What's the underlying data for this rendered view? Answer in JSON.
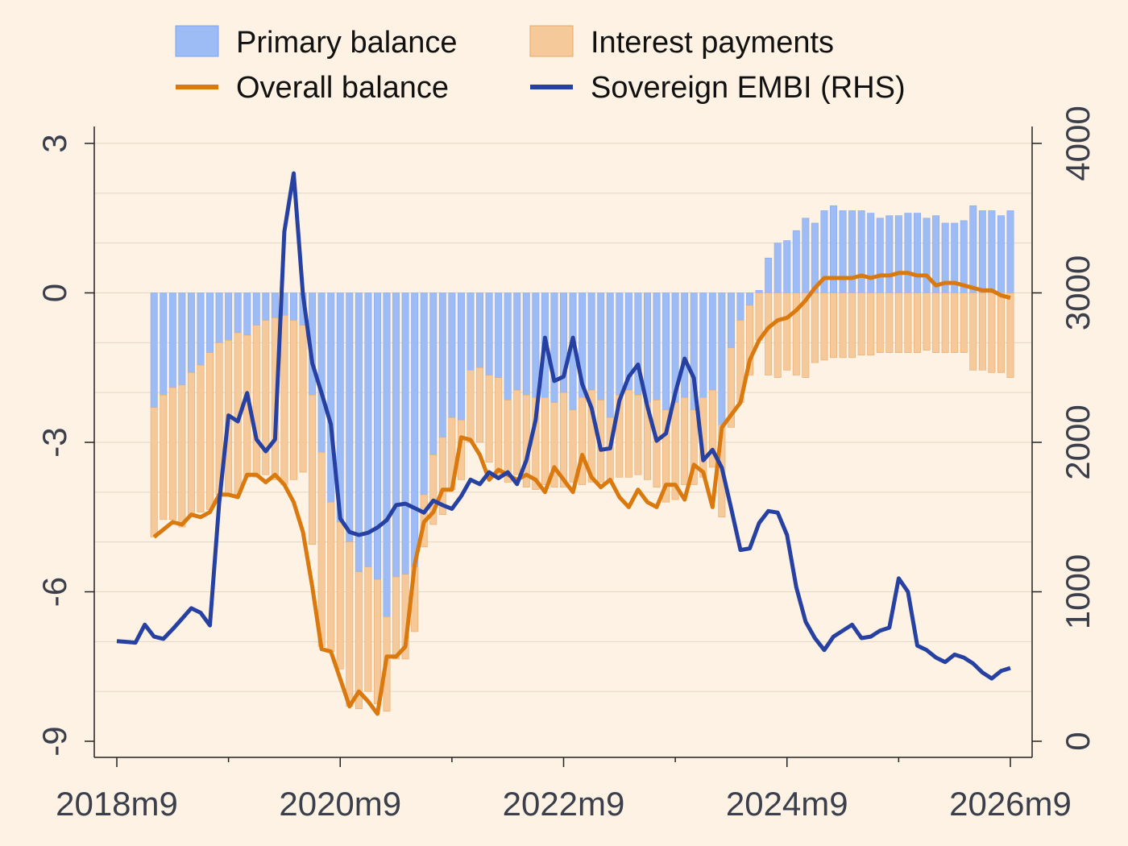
{
  "chart_data": {
    "type": "bar",
    "title": "",
    "xlabel": "",
    "ylabel": "",
    "y2label": "",
    "ylim": [
      -9,
      3
    ],
    "y2lim": [
      0,
      4000
    ],
    "yticks": [
      "3",
      "0",
      "-3",
      "-6",
      "-9"
    ],
    "y2ticks": [
      "4000",
      "3000",
      "2000",
      "1000",
      "0"
    ],
    "xticks": [
      "2018m9",
      "2020m9",
      "2022m9",
      "2024m9",
      "2026m9"
    ],
    "legend_position": "top",
    "grid": true,
    "colors": {
      "primary_balance": "#9dbcf5",
      "interest_payments": "#f5c999",
      "overall_balance": "#d9790e",
      "embi": "#2741a3",
      "background": "#fdf2e3"
    },
    "legend": {
      "primary": "Primary balance",
      "interest": "Interest payments",
      "overall": "Overall balance",
      "embi": "Sovereign EMBI (RHS)"
    },
    "series": [
      {
        "name": "Primary balance",
        "axis": "left",
        "kind": "bar",
        "values": [
          -2.3,
          -2.05,
          -1.9,
          -1.85,
          -1.6,
          -1.45,
          -1.2,
          -1.0,
          -0.95,
          -0.8,
          -0.85,
          -0.65,
          -0.55,
          -0.5,
          -0.45,
          -0.55,
          -0.65,
          -2.05,
          -3.2,
          -4.2,
          -4.6,
          -5.0,
          -5.6,
          -5.5,
          -5.75,
          -6.5,
          -5.7,
          -5.65,
          -5.5,
          -4.05,
          -3.25,
          -2.9,
          -2.5,
          -2.55,
          -1.55,
          -1.5,
          -1.65,
          -1.7,
          -2.15,
          -1.95,
          -2.05,
          -2.1,
          -2.1,
          -2.2,
          -2.0,
          -2.35,
          -2.1,
          -1.95,
          -2.15,
          -2.5,
          -2.05,
          -1.95,
          -2.05,
          -2.2,
          -2.15,
          -2.35,
          -2.2,
          -2.1,
          -2.35,
          -2.1,
          -1.95,
          -2.65,
          -1.1,
          -0.55,
          -0.25,
          0.05,
          0.7,
          1.0,
          1.05,
          1.25,
          1.5,
          1.4,
          1.65,
          1.75,
          1.65,
          1.65,
          1.65,
          1.6,
          1.5,
          1.55,
          1.55,
          1.6,
          1.6,
          1.5,
          1.55,
          1.4,
          1.4,
          1.45,
          1.75,
          1.65,
          1.65,
          1.55,
          1.65
        ]
      },
      {
        "name": "Interest payments",
        "axis": "left",
        "kind": "bar",
        "values": [
          -2.6,
          -2.5,
          -2.65,
          -2.85,
          -2.85,
          -2.95,
          -3.15,
          -3.05,
          -3.1,
          -3.25,
          -2.85,
          -3.05,
          -3.1,
          -3.25,
          -3.4,
          -3.2,
          -2.95,
          -3.0,
          -3.9,
          -3.0,
          -2.95,
          -3.3,
          -2.75,
          -2.5,
          -2.5,
          -1.9,
          -1.65,
          -1.7,
          -1.3,
          -1.05,
          -1.4,
          -1.55,
          -1.45,
          -1.2,
          -1.45,
          -1.5,
          -1.75,
          -1.95,
          -1.65,
          -1.7,
          -1.85,
          -1.85,
          -1.75,
          -1.7,
          -1.9,
          -1.45,
          -1.75,
          -1.85,
          -1.65,
          -1.25,
          -1.65,
          -1.75,
          -1.6,
          -1.55,
          -1.75,
          -1.85,
          -1.95,
          -1.75,
          -1.5,
          -1.6,
          -1.55,
          -1.85,
          -1.6,
          -1.65,
          -1.4,
          -0.95,
          -1.65,
          -1.7,
          -1.55,
          -1.65,
          -1.7,
          -1.4,
          -1.35,
          -1.3,
          -1.3,
          -1.3,
          -1.25,
          -1.25,
          -1.2,
          -1.2,
          -1.2,
          -1.2,
          -1.2,
          -1.15,
          -1.2,
          -1.2,
          -1.2,
          -1.2,
          -1.55,
          -1.55,
          -1.6,
          -1.6,
          -1.7
        ]
      },
      {
        "name": "Overall balance",
        "axis": "left",
        "kind": "line",
        "values": [
          -4.9,
          -4.75,
          -4.6,
          -4.65,
          -4.45,
          -4.5,
          -4.4,
          -4.05,
          -4.05,
          -4.1,
          -3.65,
          -3.65,
          -3.8,
          -3.65,
          -3.85,
          -4.2,
          -4.8,
          -5.9,
          -7.15,
          -7.2,
          -7.75,
          -8.3,
          -8.0,
          -8.2,
          -8.45,
          -7.3,
          -7.3,
          -7.1,
          -5.45,
          -4.6,
          -4.4,
          -3.95,
          -3.95,
          -2.9,
          -2.95,
          -3.25,
          -3.75,
          -3.55,
          -3.65,
          -3.75,
          -3.65,
          -3.75,
          -4.0,
          -3.5,
          -3.75,
          -4.0,
          -3.25,
          -3.7,
          -3.9,
          -3.75,
          -4.1,
          -4.3,
          -3.95,
          -4.2,
          -4.3,
          -3.85,
          -3.85,
          -4.15,
          -3.45,
          -3.6,
          -4.3,
          -2.7,
          -2.45,
          -2.2,
          -1.35,
          -0.95,
          -0.7,
          -0.55,
          -0.5,
          -0.35,
          -0.15,
          0.1,
          0.3,
          0.3,
          0.3,
          0.3,
          0.35,
          0.3,
          0.35,
          0.35,
          0.4,
          0.4,
          0.35,
          0.35,
          0.15,
          0.2,
          0.2,
          0.15,
          0.1,
          0.05,
          0.05,
          -0.05,
          -0.1
        ]
      },
      {
        "name": "Sovereign EMBI (RHS)",
        "axis": "right",
        "kind": "line",
        "values": [
          670,
          665,
          660,
          780,
          700,
          685,
          750,
          820,
          890,
          860,
          775,
          1600,
          2180,
          2140,
          2330,
          2020,
          1940,
          2020,
          3410,
          3800,
          2990,
          2530,
          2330,
          2120,
          1490,
          1400,
          1380,
          1395,
          1430,
          1480,
          1580,
          1590,
          1560,
          1530,
          1610,
          1580,
          1555,
          1640,
          1750,
          1720,
          1800,
          1760,
          1800,
          1720,
          1880,
          2150,
          2700,
          2410,
          2440,
          2700,
          2390,
          2230,
          1950,
          1960,
          2280,
          2440,
          2520,
          2240,
          2010,
          2060,
          2330,
          2560,
          2430,
          1880,
          1950,
          1830,
          1560,
          1280,
          1290,
          1460,
          1540,
          1530,
          1380,
          1030,
          800,
          690,
          610,
          700,
          740,
          780,
          690,
          700,
          740,
          760,
          1090,
          1000,
          640,
          610,
          560,
          530,
          580,
          560,
          520,
          460,
          420,
          470,
          490
        ]
      }
    ]
  }
}
